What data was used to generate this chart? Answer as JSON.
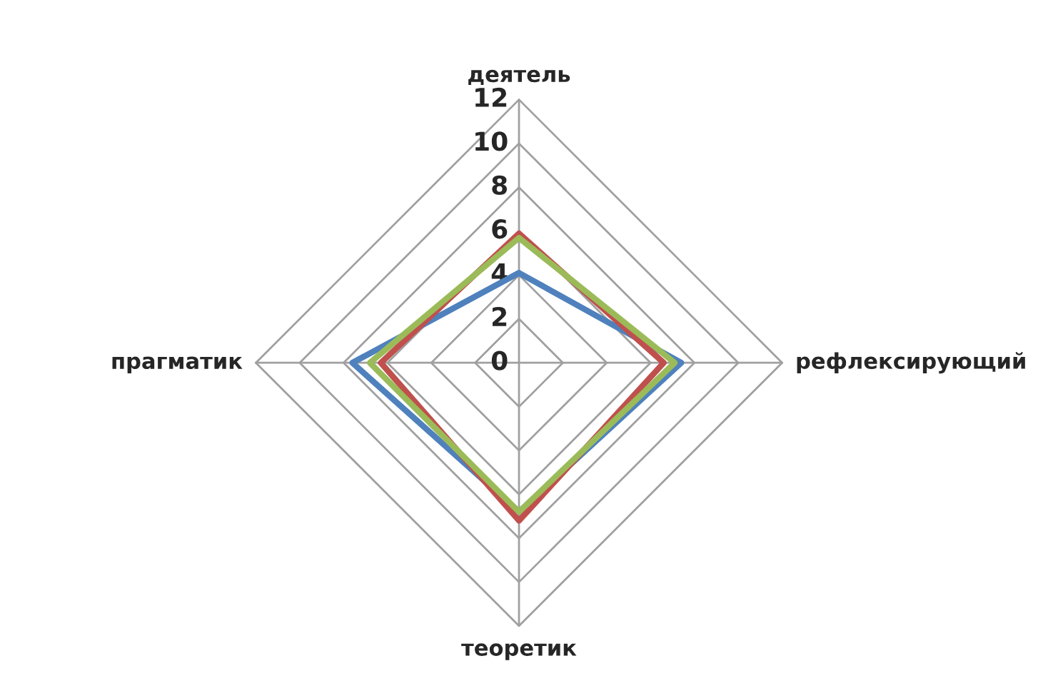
{
  "chart_data": {
    "type": "radar",
    "categories": [
      "деятель",
      "рефлексирующий",
      "теоретик",
      "прагматик"
    ],
    "series": [
      {
        "color": "#4f81bd",
        "values": [
          4.1,
          7.4,
          6.8,
          7.6
        ]
      },
      {
        "color": "#c0504d",
        "values": [
          5.9,
          6.6,
          7.2,
          6.3
        ]
      },
      {
        "color": "#9bbb59",
        "values": [
          5.7,
          7.1,
          6.8,
          6.8
        ]
      }
    ],
    "ylim": [
      0,
      12
    ],
    "yticks": [
      0,
      2,
      4,
      6,
      8,
      10,
      12
    ],
    "grid": true
  }
}
